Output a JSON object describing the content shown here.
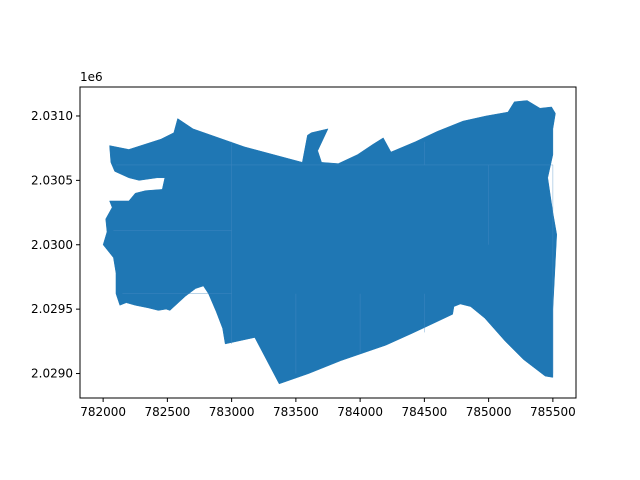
{
  "chart_data": {
    "type": "map",
    "title": "",
    "xlabel": "",
    "ylabel": "",
    "xlim": [
      781820,
      785680
    ],
    "ylim": [
      2028810,
      2031225
    ],
    "y_offset_label": "1e6",
    "x_ticks": [
      {
        "value": 782000,
        "label": "782000"
      },
      {
        "value": 782500,
        "label": "782500"
      },
      {
        "value": 783000,
        "label": "783000"
      },
      {
        "value": 783500,
        "label": "783500"
      },
      {
        "value": 784000,
        "label": "784000"
      },
      {
        "value": 784500,
        "label": "784500"
      },
      {
        "value": 785000,
        "label": "785000"
      },
      {
        "value": 785500,
        "label": "785500"
      }
    ],
    "y_ticks": [
      {
        "value": 2029000,
        "label": "2.0290"
      },
      {
        "value": 2029500,
        "label": "2.0295"
      },
      {
        "value": 2030000,
        "label": "2.0300"
      },
      {
        "value": 2030500,
        "label": "2.0305"
      },
      {
        "value": 2031000,
        "label": "2.0310"
      }
    ],
    "fill_color": "#1f77b4",
    "grid": false,
    "legend": "none",
    "regions": [
      {
        "name": "main",
        "coords": [
          [
            782050,
            2030770
          ],
          [
            782200,
            2030740
          ],
          [
            782450,
            2030820
          ],
          [
            782550,
            2030870
          ],
          [
            782580,
            2030980
          ],
          [
            782700,
            2030900
          ],
          [
            783100,
            2030760
          ],
          [
            783550,
            2030640
          ],
          [
            783590,
            2030850
          ],
          [
            783620,
            2030870
          ],
          [
            783750,
            2030900
          ],
          [
            783670,
            2030730
          ],
          [
            783700,
            2030640
          ],
          [
            783830,
            2030630
          ],
          [
            783980,
            2030700
          ],
          [
            784100,
            2030780
          ],
          [
            784180,
            2030830
          ],
          [
            784240,
            2030720
          ],
          [
            784430,
            2030800
          ],
          [
            784600,
            2030880
          ],
          [
            784800,
            2030960
          ],
          [
            784980,
            2031000
          ],
          [
            785150,
            2031030
          ],
          [
            785200,
            2031110
          ],
          [
            785300,
            2031120
          ],
          [
            785400,
            2031060
          ],
          [
            785490,
            2031070
          ],
          [
            785520,
            2031020
          ],
          [
            785500,
            2030900
          ],
          [
            785500,
            2030700
          ],
          [
            785460,
            2030520
          ],
          [
            785500,
            2030250
          ],
          [
            785530,
            2030080
          ],
          [
            785500,
            2029500
          ],
          [
            785500,
            2028970
          ],
          [
            785440,
            2028980
          ],
          [
            785270,
            2029110
          ],
          [
            785130,
            2029250
          ],
          [
            784970,
            2029430
          ],
          [
            784860,
            2029520
          ],
          [
            784780,
            2029540
          ],
          [
            784730,
            2029520
          ],
          [
            784720,
            2029460
          ],
          [
            784550,
            2029380
          ],
          [
            784400,
            2029310
          ],
          [
            784200,
            2029220
          ],
          [
            783850,
            2029100
          ],
          [
            783600,
            2029000
          ],
          [
            783370,
            2028920
          ],
          [
            783180,
            2029280
          ],
          [
            782950,
            2029230
          ],
          [
            782930,
            2029350
          ],
          [
            782880,
            2029480
          ],
          [
            782820,
            2029620
          ],
          [
            782780,
            2029680
          ],
          [
            782720,
            2029660
          ],
          [
            782640,
            2029600
          ],
          [
            782520,
            2029490
          ],
          [
            782490,
            2029500
          ],
          [
            782430,
            2029490
          ],
          [
            782350,
            2029510
          ],
          [
            782250,
            2029530
          ],
          [
            782180,
            2029550
          ],
          [
            782130,
            2029530
          ],
          [
            782100,
            2029620
          ],
          [
            782100,
            2029780
          ],
          [
            782080,
            2029900
          ],
          [
            782000,
            2030000
          ],
          [
            782030,
            2030100
          ],
          [
            782020,
            2030200
          ],
          [
            782070,
            2030290
          ],
          [
            782050,
            2030340
          ],
          [
            782200,
            2030340
          ],
          [
            782250,
            2030400
          ],
          [
            782330,
            2030420
          ],
          [
            782460,
            2030430
          ],
          [
            782480,
            2030520
          ],
          [
            782420,
            2030520
          ],
          [
            782280,
            2030500
          ],
          [
            782200,
            2030520
          ],
          [
            782090,
            2030570
          ],
          [
            782060,
            2030640
          ]
        ]
      }
    ]
  }
}
